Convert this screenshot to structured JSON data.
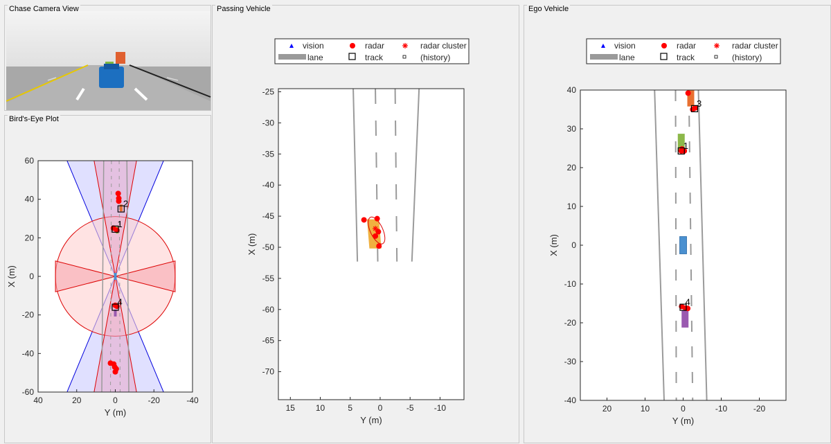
{
  "panels": {
    "chase": "Chase Camera View",
    "birdseye": "Bird's-Eye Plot",
    "passing": "Passing Vehicle",
    "ego": "Ego Vehicle"
  },
  "legend": {
    "vision": "vision",
    "radar": "radar",
    "radar_cluster": "radar cluster",
    "lane": "lane",
    "track": "track",
    "history": "(history)"
  },
  "colors": {
    "radar": "#ff0000",
    "vision": "#0000ff",
    "lane": "#9a9a9a",
    "ego_car": "#4a90d0",
    "car1": "#8cb84a",
    "car2": "#e87030",
    "car3": "#9a5ab0",
    "passing_car": "#f0b040",
    "radar_coverage": "#ffd0d0",
    "vision_coverage": "#d8d8ff"
  },
  "chart_data": [
    {
      "type": "scatter",
      "name": "birdseye",
      "xlabel": "Y (m)",
      "ylabel": "X (m)",
      "xlim": [
        40,
        -40
      ],
      "ylim": [
        -60,
        60
      ],
      "xticks": [
        "40",
        "20",
        "0",
        "-20",
        "-40"
      ],
      "yticks": [
        "60",
        "40",
        "20",
        "0",
        "-20",
        "-40",
        "-60"
      ],
      "radar_points": [
        [
          -1.5,
          43
        ],
        [
          -1.8,
          40.5
        ],
        [
          -1.8,
          39
        ],
        [
          1,
          25
        ],
        [
          -0.8,
          24
        ],
        [
          0,
          -15
        ],
        [
          -0.8,
          -15.5
        ],
        [
          2.5,
          -45
        ],
        [
          0.8,
          -45.5
        ],
        [
          0.3,
          -47
        ],
        [
          -0.5,
          -48
        ],
        [
          0,
          -49.5
        ]
      ],
      "tracks": [
        {
          "id": "2",
          "y": -3,
          "x": 35
        },
        {
          "id": "1",
          "y": 0,
          "x": 24.5
        },
        {
          "id": "4",
          "y": 0,
          "x": -16
        }
      ],
      "vehicles": [
        {
          "y": -1,
          "x": 24,
          "color": "car1"
        },
        {
          "y": -3,
          "x": 35.5,
          "color": "car2"
        },
        {
          "y": 0,
          "x": -19,
          "color": "car3"
        },
        {
          "y": 0,
          "x": 0,
          "color": "ego_car"
        }
      ]
    },
    {
      "type": "scatter",
      "name": "passing",
      "xlabel": "Y (m)",
      "ylabel": "X (m)",
      "xlim": [
        17,
        -14
      ],
      "ylim": [
        -74.5,
        -24.5
      ],
      "xticks": [
        "15",
        "10",
        "5",
        "0",
        "-5",
        "-10"
      ],
      "yticks": [
        "-25",
        "-30",
        "-35",
        "-40",
        "-45",
        "-50",
        "-55",
        "-60",
        "-65",
        "-70"
      ],
      "radar_points": [
        [
          2.7,
          -45.6
        ],
        [
          0.5,
          -45.4
        ],
        [
          0.3,
          -47.5
        ],
        [
          0.8,
          -48.2
        ],
        [
          0.2,
          -49.8
        ]
      ],
      "radar_cluster": [
        [
          0.8,
          -47
        ]
      ],
      "vehicles": [
        {
          "y": 1,
          "x": -48,
          "color": "passing_car"
        }
      ]
    },
    {
      "type": "scatter",
      "name": "ego",
      "xlabel": "Y (m)",
      "ylabel": "X (m)",
      "xlim": [
        27,
        -27
      ],
      "ylim": [
        -40,
        40
      ],
      "xticks": [
        "20",
        "10",
        "0",
        "-10",
        "-20"
      ],
      "yticks": [
        "40",
        "30",
        "20",
        "10",
        "0",
        "-10",
        "-20",
        "-30",
        "-40"
      ],
      "radar_points": [
        [
          -1.3,
          39.2
        ],
        [
          -3.2,
          35.4
        ],
        [
          -2.5,
          35
        ],
        [
          0.3,
          24.8
        ],
        [
          0.5,
          24.3
        ],
        [
          -0.3,
          24.3
        ],
        [
          0.4,
          -15.8
        ],
        [
          -0.6,
          -16.2
        ],
        [
          -1.2,
          -16.3
        ]
      ],
      "tracks": [
        {
          "id": "3",
          "y": -3,
          "x": 35.2
        },
        {
          "id": "1",
          "y": 0.5,
          "x": 24.3
        },
        {
          "id": "4",
          "y": 0,
          "x": -16
        }
      ],
      "vehicles": [
        {
          "y": 0,
          "x": 0,
          "color": "ego_car"
        },
        {
          "y": 0.5,
          "x": 26.5,
          "color": "car1"
        },
        {
          "y": -2,
          "x": 38,
          "color": "car2"
        },
        {
          "y": -0.5,
          "x": -19,
          "color": "car3"
        }
      ]
    }
  ]
}
